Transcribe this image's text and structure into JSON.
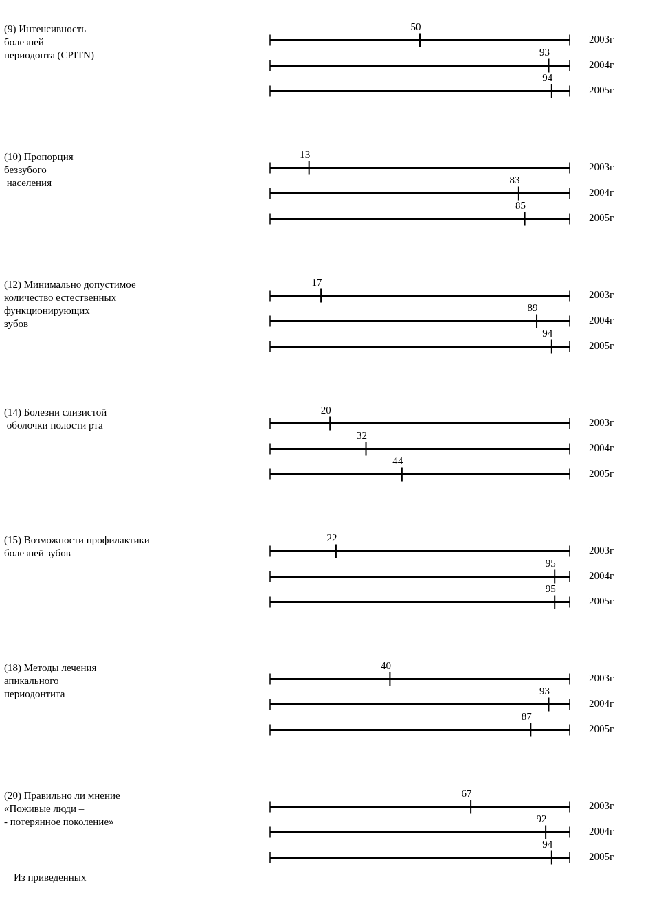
{
  "chart_data": [
    {
      "type": "other",
      "title": "(9) Интенсивность\nболезней\nпериодонта (CPITN)",
      "categories": [
        "2003г",
        "2004г",
        "2005г"
      ],
      "values": [
        50,
        93,
        94
      ],
      "color": "#000000",
      "data_labels": true
    },
    {
      "type": "other",
      "title": "(10) Пропорция\nбеззубого\n населения",
      "categories": [
        "2003г",
        "2004г",
        "2005г"
      ],
      "values": [
        13,
        83,
        85
      ],
      "color": "#000000",
      "data_labels": true
    },
    {
      "type": "other",
      "title": "(12) Минимально допустимое\nколичество естественных\nфункционирующих\nзубов",
      "categories": [
        "2003г",
        "2004г",
        "2005г"
      ],
      "values": [
        17,
        89,
        94
      ],
      "color": "#000000",
      "data_labels": true
    },
    {
      "type": "other",
      "title": "(14) Болезни слизистой\n оболочки полости рта",
      "categories": [
        "2003г",
        "2004г",
        "2005г"
      ],
      "values": [
        20,
        32,
        44
      ],
      "color": "#000000",
      "data_labels": true
    },
    {
      "type": "other",
      "title": "(15) Возможности профилактики\nболезней зубов",
      "categories": [
        "2003г",
        "2004г",
        "2005г"
      ],
      "values": [
        22,
        95,
        95
      ],
      "color": "#000000",
      "data_labels": true
    },
    {
      "type": "other",
      "title": "(18) Методы лечения\nапикального\nпериодонтита",
      "categories": [
        "2003г",
        "2004г",
        "2005г"
      ],
      "values": [
        40,
        93,
        87
      ],
      "color": "#000000",
      "data_labels": true
    },
    {
      "type": "other",
      "title": "(20) Правильно ли мнение\n«Поживые люди –\n- потерянное поколение»",
      "categories": [
        "2003г",
        "2004г",
        "2005г"
      ],
      "values": [
        67,
        92,
        94
      ],
      "color": "#000000",
      "data_labels": true,
      "annotations": [
        "Из приведенных"
      ]
    }
  ]
}
